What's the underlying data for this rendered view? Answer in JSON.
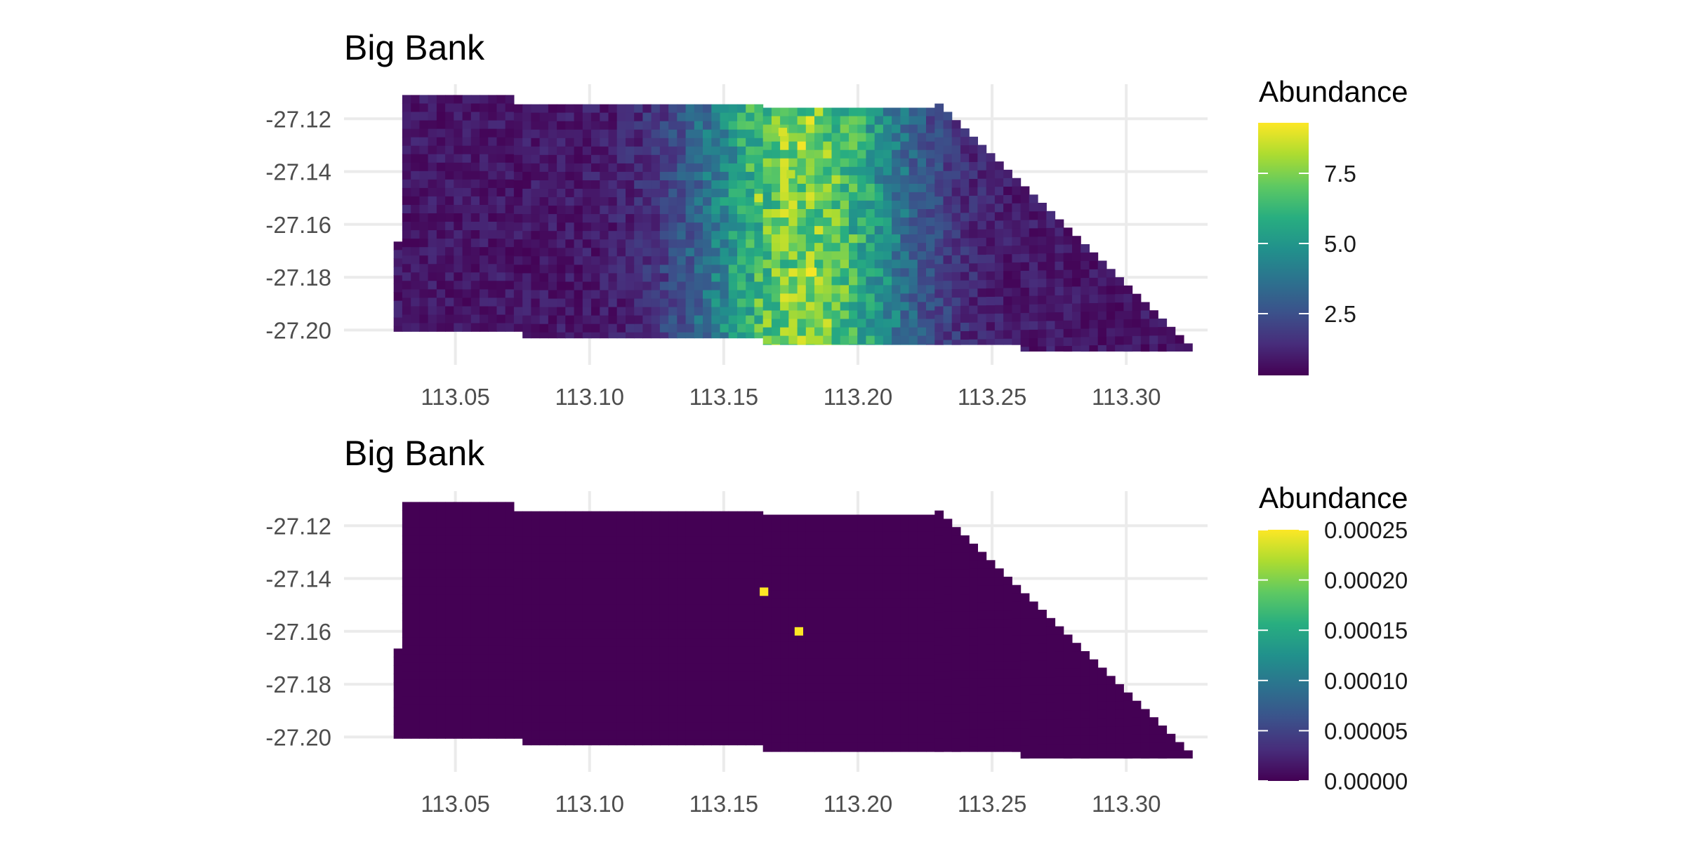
{
  "chart_data": [
    {
      "type": "heatmap",
      "title": "Big Bank",
      "xlabel": "",
      "ylabel": "",
      "xlim": [
        113.0085,
        113.3303
      ],
      "ylim": [
        -27.2132,
        -27.1069
      ],
      "x_ticks": [
        "113.05",
        "113.10",
        "113.15",
        "113.20",
        "113.25",
        "113.30"
      ],
      "y_ticks": [
        "-27.12",
        "-27.14",
        "-27.16",
        "-27.18",
        "-27.20"
      ],
      "grid": true,
      "extent": {
        "x": [
          113.027,
          113.326
        ],
        "y": [
          -27.21,
          -27.111
        ],
        "edge_start_x": 113.232,
        "edge_end_x": 113.326,
        "edge_start_y": -27.116,
        "edge_end_y": -27.208
      },
      "value_pattern": {
        "description": "abundance peaks in a north-south band around longitude 113.18",
        "background": 0.8,
        "peak": 7.5,
        "peak_x": 113.18,
        "peak_width": 0.028,
        "hotspots": [
          {
            "x": 113.172,
            "y": -27.125,
            "value": 8.8
          },
          {
            "x": 113.163,
            "y": -27.15,
            "value": 8.6
          },
          {
            "x": 113.183,
            "y": -27.178,
            "value": 9.2
          },
          {
            "x": 113.175,
            "y": -27.141,
            "value": 8.4
          }
        ]
      },
      "legend": {
        "title": "Abundance",
        "position": "right",
        "colorscale": "viridis",
        "range": [
          0.3,
          9.3
        ],
        "breaks": [
          2.5,
          5.0,
          7.5
        ],
        "labels": [
          "2.5",
          "5.0",
          "7.5"
        ]
      }
    },
    {
      "type": "heatmap",
      "title": "Big Bank",
      "xlabel": "",
      "ylabel": "",
      "xlim": [
        113.0085,
        113.3303
      ],
      "ylim": [
        -27.2132,
        -27.1069
      ],
      "x_ticks": [
        "113.05",
        "113.10",
        "113.15",
        "113.20",
        "113.25",
        "113.30"
      ],
      "y_ticks": [
        "-27.12",
        "-27.14",
        "-27.16",
        "-27.18",
        "-27.20"
      ],
      "grid": true,
      "extent": {
        "x": [
          113.027,
          113.326
        ],
        "y": [
          -27.21,
          -27.111
        ],
        "edge_start_x": 113.232,
        "edge_end_x": 113.326,
        "edge_start_y": -27.116,
        "edge_end_y": -27.208
      },
      "value_pattern": {
        "description": "near-zero everywhere except two cells",
        "background": 0.0,
        "hotspots": [
          {
            "x": 113.165,
            "y": -27.145,
            "value": 0.00025
          },
          {
            "x": 113.178,
            "y": -27.16,
            "value": 0.00025
          }
        ]
      },
      "legend": {
        "title": "Abundance",
        "position": "right",
        "colorscale": "viridis",
        "range": [
          0.0,
          0.00025
        ],
        "breaks": [
          0.0,
          5e-05,
          0.0001,
          0.00015,
          0.0002,
          0.00025
        ],
        "labels": [
          "0.00000",
          "0.00005",
          "0.00010",
          "0.00015",
          "0.00020",
          "0.00025"
        ]
      }
    }
  ]
}
